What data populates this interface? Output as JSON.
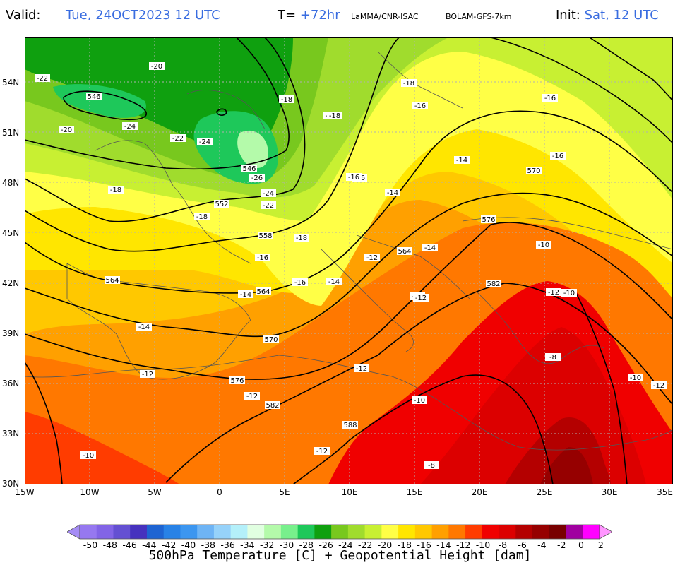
{
  "header": {
    "valid_label": "Valid:",
    "valid_value": "Tue, 24OCT2023   12 UTC",
    "t_label": "T=",
    "t_value": "+72hr",
    "source": "LaMMA/CNR-ISAC",
    "model": "BOLAM-GFS-7km",
    "init_label": "Init:",
    "init_value": "Sat, 12 UTC"
  },
  "map": {
    "lat_labels": [
      "54N",
      "51N",
      "48N",
      "45N",
      "42N",
      "39N",
      "36N",
      "33N",
      "30N"
    ],
    "lon_labels": [
      "15W",
      "10W",
      "5W",
      "0",
      "5E",
      "10E",
      "15E",
      "20E",
      "25E",
      "30E",
      "35E"
    ],
    "temperature_labels": [
      "-22",
      "-20",
      "-20",
      "-24",
      "-22",
      "-24",
      "-26",
      "-24",
      "-22",
      "-18",
      "-18",
      "-20",
      "-18",
      "-18",
      "-16",
      "-16",
      "-18",
      "-16",
      "-14",
      "-16",
      "-14",
      "-16",
      "-18",
      "-16",
      "-14",
      "-12",
      "-14",
      "-16",
      "-14",
      "-12",
      "-14",
      "-12",
      "-12",
      "-12",
      "-10",
      "-12",
      "-10",
      "-12",
      "-10",
      "-8",
      "-10",
      "-12",
      "-8",
      "-12",
      "-10"
    ],
    "height_labels": [
      "546",
      "546",
      "552",
      "558",
      "564",
      "564",
      "564",
      "570",
      "570",
      "576",
      "576",
      "582",
      "582",
      "588"
    ]
  },
  "colorbar": {
    "colors": [
      "#a58cf5",
      "#9678f0",
      "#8264e6",
      "#6450d2",
      "#4632be",
      "#1e64d2",
      "#2882e6",
      "#3c96f0",
      "#6eb4f5",
      "#96d2fa",
      "#b4f0fa",
      "#e1ffe1",
      "#b4faaa",
      "#78f08c",
      "#1ec85a",
      "#0fa00f",
      "#78c81e",
      "#a0dc2d",
      "#c8f032",
      "#ffff46",
      "#ffe600",
      "#ffc800",
      "#ffa000",
      "#ff7800",
      "#ff3c00",
      "#f00000",
      "#dc0000",
      "#b40000",
      "#960000",
      "#780000",
      "#a000a0",
      "#ff00ff",
      "#ff96ff"
    ],
    "tick_labels": [
      "-50",
      "-48",
      "-46",
      "-44",
      "-42",
      "-40",
      "-38",
      "-36",
      "-34",
      "-32",
      "-30",
      "-28",
      "-26",
      "-24",
      "-22",
      "-20",
      "-18",
      "-16",
      "-14",
      "-12",
      "-10",
      "-8",
      "-6",
      "-4",
      "-2",
      "0",
      "2"
    ]
  },
  "footer": "500hPa Temperature [C] + Geopotential Height [dam]"
}
